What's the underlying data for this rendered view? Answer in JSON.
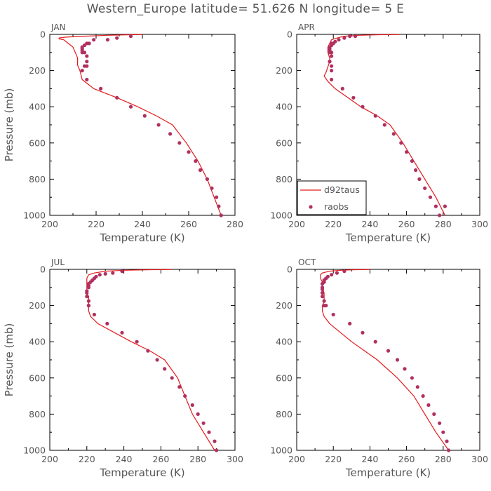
{
  "figure_title": "Western_Europe  latitude= 51.626 N longitude= 5 E",
  "colors": {
    "model": "#e41a1c",
    "obs": "#b03060",
    "frame": "#000000",
    "text": "#555555"
  },
  "legend": {
    "placement": "lower-left of APR panel",
    "model_label": "d92taus",
    "obs_label": "raobs"
  },
  "chart_data": [
    {
      "type": "line+scatter",
      "title": "JAN",
      "xlabel": "Temperature (K)",
      "ylabel": "Pressure (mb)",
      "xlim": [
        200,
        280
      ],
      "ylim": [
        1000,
        0
      ],
      "xticks": [
        200,
        220,
        240,
        260,
        280
      ],
      "yticks": [
        0,
        200,
        400,
        600,
        800,
        1000
      ],
      "grid": false,
      "series": [
        {
          "name": "d92taus",
          "kind": "line",
          "x": [
            240,
            235,
            225,
            215,
            207,
            204,
            204,
            206,
            208,
            210,
            211,
            212,
            212,
            213,
            214,
            219,
            229,
            238,
            246,
            253,
            259,
            264,
            268,
            271,
            274
          ],
          "y": [
            1,
            2,
            5,
            10,
            15,
            20,
            25,
            30,
            50,
            70,
            100,
            130,
            170,
            200,
            250,
            300,
            350,
            400,
            450,
            500,
            600,
            700,
            800,
            900,
            1000
          ]
        },
        {
          "name": "raobs",
          "kind": "scatter",
          "x": [
            235,
            229,
            225,
            219,
            217,
            216,
            215,
            214,
            214,
            214,
            214,
            215,
            216,
            216,
            215,
            216,
            214,
            216,
            222,
            229,
            235,
            241,
            247,
            252,
            256,
            260,
            263,
            265,
            268,
            270,
            272,
            273,
            274,
            274
          ],
          "y": [
            10,
            20,
            30,
            30,
            50,
            50,
            60,
            70,
            80,
            90,
            100,
            100,
            120,
            150,
            175,
            175,
            200,
            250,
            300,
            350,
            400,
            450,
            500,
            550,
            600,
            650,
            700,
            750,
            800,
            850,
            900,
            950,
            1000,
            1000
          ]
        }
      ]
    },
    {
      "type": "line+scatter",
      "title": "APR",
      "xlabel": "Temperature (K)",
      "ylabel": "Pressure (mb)",
      "xlim": [
        200,
        300
      ],
      "ylim": [
        1000,
        0
      ],
      "xticks": [
        200,
        220,
        240,
        260,
        280,
        300
      ],
      "yticks": [
        0,
        200,
        400,
        600,
        800,
        1000
      ],
      "grid": false,
      "series": [
        {
          "name": "d92taus",
          "kind": "line",
          "x": [
            256,
            245,
            234,
            226,
            222,
            219,
            218,
            217,
            217,
            218,
            218,
            217,
            216,
            215,
            217,
            221,
            228,
            235,
            244,
            251,
            258,
            264,
            270,
            276,
            281
          ],
          "y": [
            1,
            2,
            5,
            10,
            20,
            30,
            50,
            70,
            100,
            130,
            150,
            180,
            210,
            230,
            260,
            300,
            350,
            400,
            450,
            500,
            600,
            700,
            800,
            900,
            1000
          ]
        },
        {
          "name": "raobs",
          "kind": "scatter",
          "x": [
            232,
            229,
            226,
            223,
            221,
            220,
            219,
            219,
            218,
            218,
            218,
            218,
            219,
            219,
            218,
            218,
            219,
            219,
            219,
            225,
            231,
            236,
            243,
            248,
            253,
            257,
            260,
            263,
            265,
            267,
            270,
            273,
            276,
            278,
            281
          ],
          "y": [
            10,
            10,
            20,
            30,
            40,
            50,
            50,
            60,
            70,
            80,
            90,
            100,
            100,
            120,
            150,
            150,
            175,
            200,
            250,
            300,
            350,
            400,
            450,
            500,
            550,
            600,
            650,
            700,
            750,
            800,
            850,
            900,
            950,
            1000,
            950
          ]
        }
      ]
    },
    {
      "type": "line+scatter",
      "title": "JUL",
      "xlabel": "Temperature (K)",
      "ylabel": "Pressure (mb)",
      "xlim": [
        200,
        300
      ],
      "ylim": [
        1000,
        0
      ],
      "xticks": [
        200,
        220,
        240,
        260,
        280,
        300
      ],
      "yticks": [
        0,
        200,
        400,
        600,
        800,
        1000
      ],
      "grid": false,
      "series": [
        {
          "name": "d92taus",
          "kind": "line",
          "x": [
            266,
            255,
            240,
            230,
            224,
            221,
            220,
            220,
            220,
            220,
            221,
            221,
            221,
            221,
            222,
            226,
            235,
            244,
            254,
            262,
            269,
            273,
            277,
            283,
            289
          ],
          "y": [
            1,
            2,
            5,
            10,
            20,
            30,
            50,
            70,
            100,
            130,
            150,
            180,
            200,
            230,
            260,
            300,
            350,
            400,
            450,
            500,
            600,
            700,
            800,
            900,
            1000
          ]
        },
        {
          "name": "raobs",
          "kind": "scatter",
          "x": [
            239,
            234,
            230,
            227,
            225,
            224,
            223,
            222,
            221,
            221,
            221,
            220,
            220,
            220,
            221,
            221,
            221,
            224,
            231,
            239,
            247,
            253,
            258,
            262,
            266,
            270,
            273,
            277,
            280,
            283,
            286,
            289,
            290
          ],
          "y": [
            10,
            20,
            25,
            30,
            40,
            50,
            60,
            70,
            80,
            90,
            100,
            120,
            130,
            150,
            175,
            200,
            200,
            250,
            300,
            350,
            400,
            450,
            500,
            550,
            600,
            650,
            700,
            750,
            800,
            850,
            900,
            950,
            1000
          ]
        }
      ]
    },
    {
      "type": "line+scatter",
      "title": "OCT",
      "xlabel": "Temperature (K)",
      "ylabel": "Pressure (mb)",
      "xlim": [
        200,
        300
      ],
      "ylim": [
        1000,
        0
      ],
      "xticks": [
        200,
        220,
        240,
        260,
        280,
        300
      ],
      "yticks": [
        0,
        200,
        400,
        600,
        800,
        1000
      ],
      "grid": false,
      "series": [
        {
          "name": "d92taus",
          "kind": "line",
          "x": [
            240,
            232,
            224,
            218,
            214,
            213,
            213,
            214,
            214,
            215,
            215,
            215,
            214,
            214,
            215,
            218,
            224,
            230,
            237,
            244,
            255,
            264,
            270,
            276,
            283
          ],
          "y": [
            1,
            2,
            5,
            10,
            20,
            30,
            50,
            70,
            100,
            130,
            150,
            180,
            200,
            230,
            260,
            300,
            350,
            400,
            450,
            500,
            600,
            700,
            800,
            900,
            1000
          ]
        },
        {
          "name": "raobs",
          "kind": "scatter",
          "x": [
            226,
            222,
            219,
            217,
            216,
            215,
            215,
            214,
            214,
            214,
            214,
            214,
            215,
            215,
            216,
            220,
            229,
            236,
            243,
            250,
            255,
            259,
            263,
            266,
            269,
            272,
            275,
            278,
            280,
            282,
            283
          ],
          "y": [
            10,
            20,
            30,
            40,
            50,
            60,
            70,
            80,
            100,
            110,
            130,
            150,
            175,
            200,
            200,
            250,
            300,
            350,
            400,
            450,
            500,
            550,
            600,
            650,
            700,
            750,
            800,
            850,
            900,
            950,
            1000
          ]
        }
      ]
    }
  ]
}
